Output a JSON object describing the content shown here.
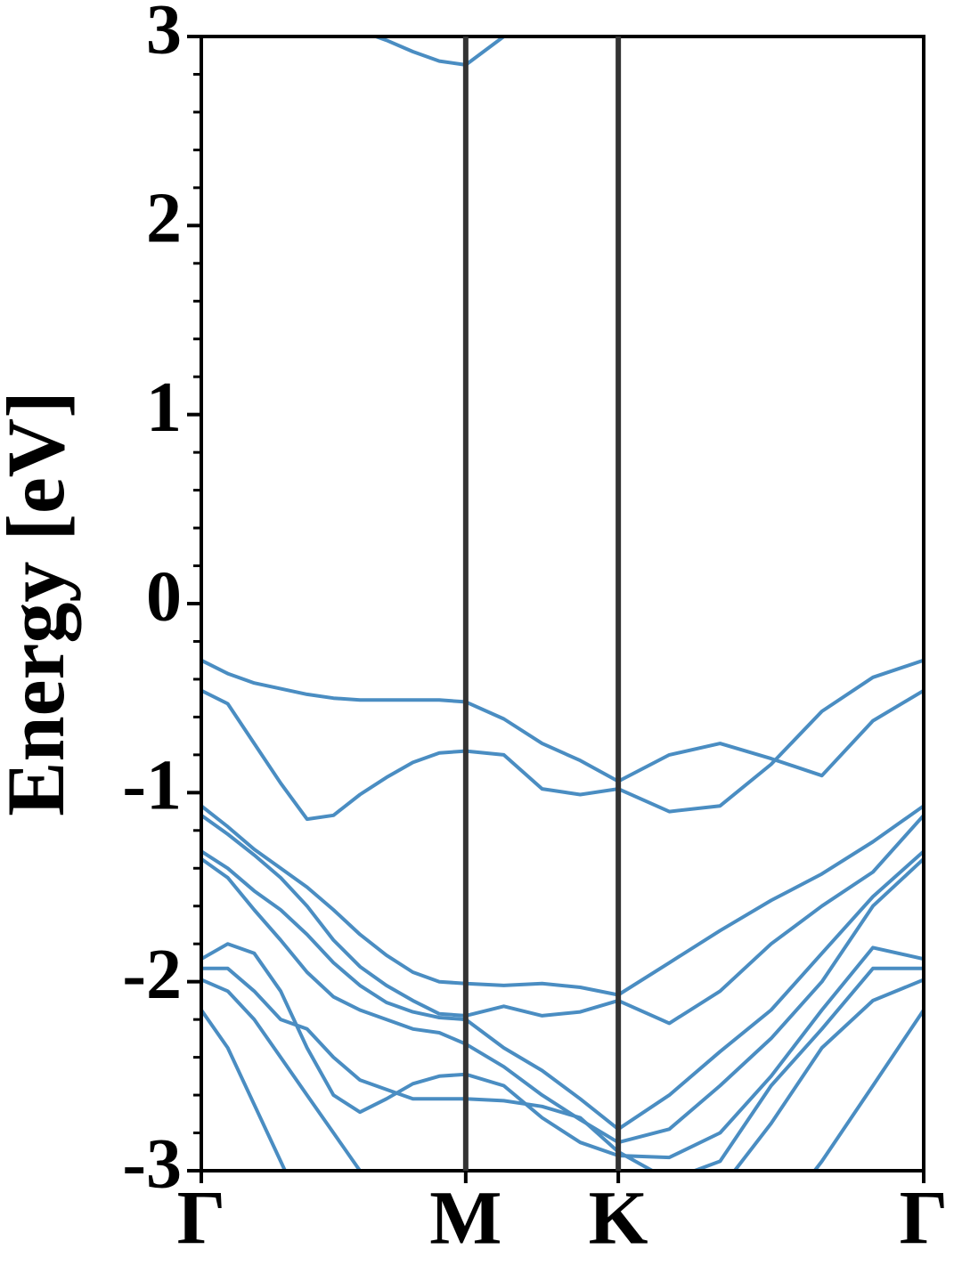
{
  "chart_data": {
    "type": "line",
    "ylabel": "Energy [eV]",
    "color": "#4a8dc2",
    "x": [
      0,
      0.1,
      0.2,
      0.3,
      0.4,
      0.5,
      0.6,
      0.7,
      0.8,
      0.9,
      1.0,
      1.144,
      1.289,
      1.433,
      1.577,
      1.77,
      1.962,
      2.155,
      2.347,
      2.54,
      2.732
    ],
    "series": [
      {
        "values": [
          null,
          null,
          null,
          null,
          null,
          3.1,
          3.03,
          2.98,
          2.92,
          2.87,
          2.85,
          3.0,
          3.2,
          null,
          null,
          null,
          null,
          null,
          null,
          null,
          null
        ]
      },
      {
        "values": [
          -0.3,
          -0.37,
          -0.42,
          -0.45,
          -0.48,
          -0.5,
          -0.51,
          -0.51,
          -0.51,
          -0.51,
          -0.52,
          -0.61,
          -0.74,
          -0.83,
          -0.94,
          -0.8,
          -0.74,
          -0.82,
          -0.91,
          -0.62,
          -0.46
        ]
      },
      {
        "values": [
          -0.46,
          -0.53,
          -0.74,
          -0.95,
          -1.14,
          -1.12,
          -1.01,
          -0.92,
          -0.84,
          -0.79,
          -0.78,
          -0.8,
          -0.98,
          -1.01,
          -0.98,
          -1.1,
          -1.07,
          -0.85,
          -0.57,
          -0.39,
          -0.3
        ]
      },
      {
        "values": [
          -1.07,
          -1.18,
          -1.3,
          -1.4,
          -1.5,
          -1.62,
          -1.75,
          -1.86,
          -1.95,
          -2.0,
          -2.01,
          -2.02,
          -2.01,
          -2.03,
          -2.07,
          -1.9,
          -1.73,
          -1.57,
          -1.43,
          -1.26,
          -1.07
        ]
      },
      {
        "values": [
          -1.12,
          -1.22,
          -1.33,
          -1.45,
          -1.6,
          -1.78,
          -1.92,
          -2.02,
          -2.1,
          -2.17,
          -2.18,
          -2.13,
          -2.18,
          -2.16,
          -2.1,
          -2.22,
          -2.05,
          -1.8,
          -1.6,
          -1.42,
          -1.12
        ]
      },
      {
        "values": [
          -1.31,
          -1.4,
          -1.52,
          -1.62,
          -1.75,
          -1.9,
          -2.02,
          -2.11,
          -2.16,
          -2.19,
          -2.2,
          -2.35,
          -2.47,
          -2.62,
          -2.78,
          -2.6,
          -2.37,
          -2.15,
          -1.85,
          -1.55,
          -1.31
        ]
      },
      {
        "values": [
          -1.35,
          -1.45,
          -1.62,
          -1.78,
          -1.95,
          -2.08,
          -2.15,
          -2.2,
          -2.25,
          -2.27,
          -2.33,
          -2.45,
          -2.6,
          -2.73,
          -2.85,
          -2.78,
          -2.55,
          -2.3,
          -2.0,
          -1.6,
          -1.35
        ]
      },
      {
        "values": [
          -1.88,
          -1.8,
          -1.85,
          -2.05,
          -2.35,
          -2.6,
          -2.69,
          -2.62,
          -2.54,
          -2.5,
          -2.49,
          -2.55,
          -2.72,
          -2.85,
          -2.92,
          -2.93,
          -2.8,
          -2.5,
          -2.15,
          -1.82,
          -1.88
        ]
      },
      {
        "values": [
          -1.93,
          -1.93,
          -2.05,
          -2.2,
          -2.25,
          -2.4,
          -2.52,
          -2.57,
          -2.62,
          -2.62,
          -2.62,
          -2.63,
          -2.66,
          -2.72,
          -2.9,
          -3.05,
          -2.95,
          -2.55,
          -2.25,
          -1.93,
          -1.93
        ]
      },
      {
        "values": [
          -1.99,
          -2.05,
          -2.2,
          -2.4,
          -2.6,
          -2.8,
          -3.0,
          -3.2,
          null,
          null,
          null,
          null,
          null,
          null,
          null,
          null,
          -3.1,
          -2.75,
          -2.35,
          -2.1,
          -1.99
        ]
      },
      {
        "values": [
          -2.15,
          -2.35,
          -2.65,
          -2.95,
          -3.25,
          null,
          null,
          null,
          null,
          null,
          null,
          null,
          null,
          null,
          null,
          null,
          null,
          -3.3,
          -2.95,
          -2.55,
          -2.15
        ]
      }
    ],
    "xlim": [
      0,
      2.732
    ],
    "xticks": [
      {
        "value": 0,
        "label": "Γ"
      },
      {
        "value": 1.0,
        "label": "M"
      },
      {
        "value": 1.577,
        "label": "K"
      },
      {
        "value": 2.732,
        "label": "Γ"
      }
    ],
    "ylim": [
      -3,
      3
    ],
    "yticks": [
      3,
      2,
      1,
      0,
      -1,
      -2,
      -3
    ],
    "yminorticks": [
      -2.8,
      -2.6,
      -2.4,
      -2.2,
      -1.8,
      -1.6,
      -1.4,
      -1.2,
      -0.8,
      -0.6,
      -0.4,
      -0.2,
      0.2,
      0.4,
      0.6,
      0.8,
      1.2,
      1.4,
      1.6,
      1.8,
      2.2,
      2.4,
      2.6,
      2.8
    ]
  }
}
